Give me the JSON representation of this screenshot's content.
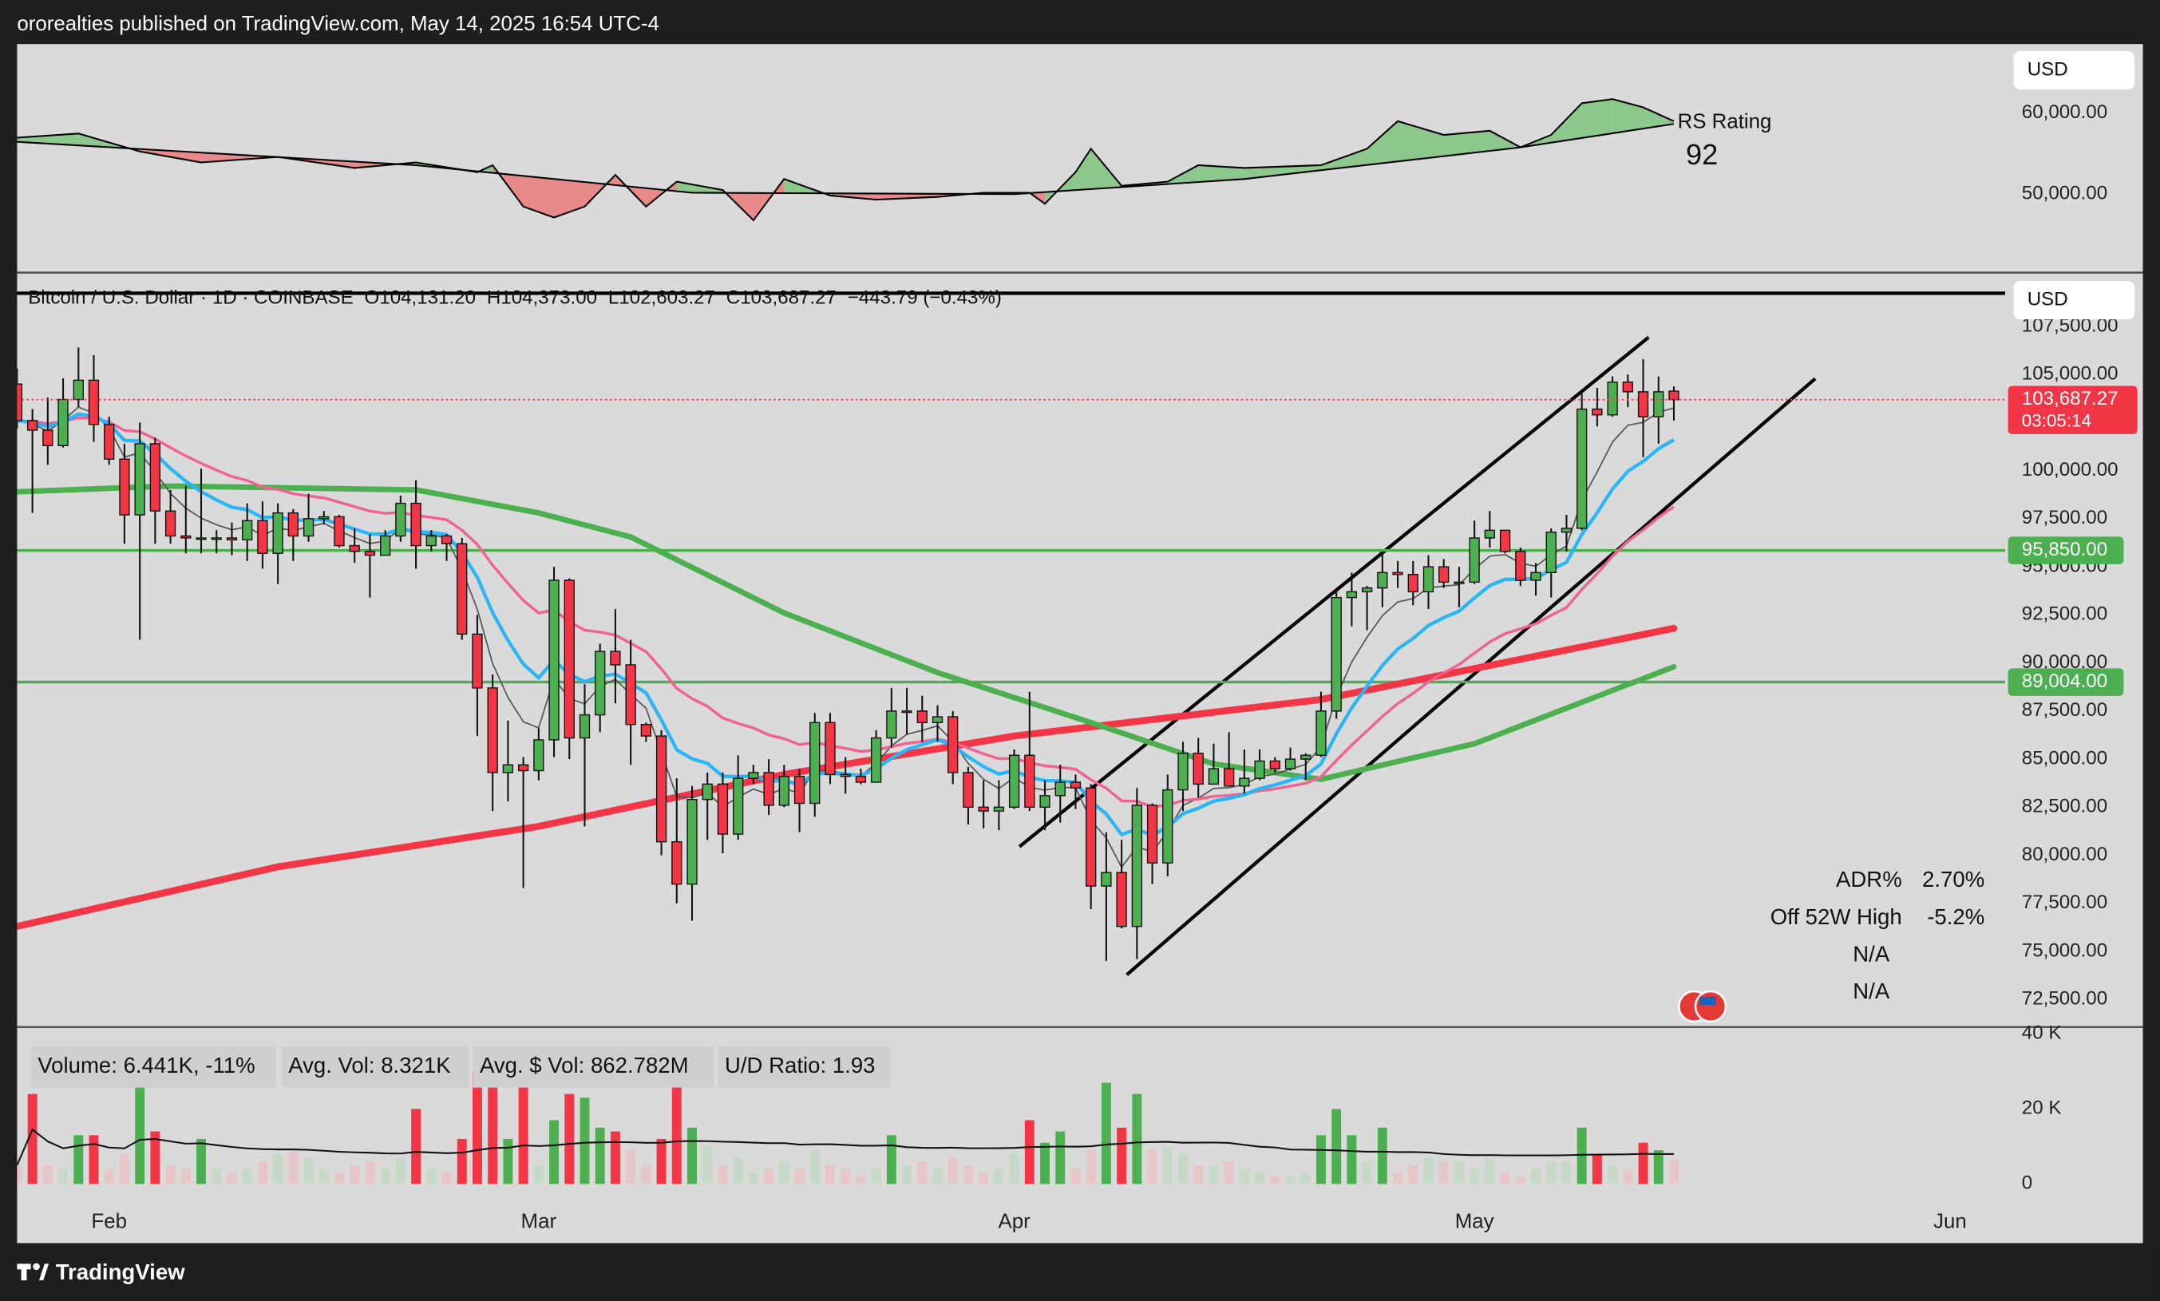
{
  "header": {
    "published": "ororealties published on TradingView.com, May 14, 2025 16:54 UTC-4"
  },
  "footer": "TradingView",
  "chart_data": [
    {
      "type": "rs",
      "title": "RS Rating",
      "rating": 92,
      "currency": "USD",
      "xlim": [
        0,
        129.6
      ],
      "ylim": [
        40510,
        68475
      ],
      "yticks": [
        {
          "value": 50000,
          "label": "50,000.00"
        },
        {
          "value": 60000,
          "label": "60,000.00"
        }
      ],
      "up_color": "#8cc88c",
      "down_color": "#e88a8a",
      "series": [
        {
          "color": "#000000",
          "x": [
            0,
            4,
            8,
            12,
            17,
            22,
            26,
            30,
            31,
            33,
            35,
            37,
            39,
            41,
            43,
            46,
            48,
            50,
            53,
            56,
            60,
            63,
            66,
            67,
            69,
            70,
            72,
            75,
            77,
            80,
            85,
            88,
            90,
            93,
            96,
            98,
            100,
            102,
            104,
            106,
            108
          ],
          "values": [
            56950,
            57460,
            55250,
            53900,
            54580,
            53220,
            53900,
            52710,
            53560,
            48470,
            47120,
            48470,
            52370,
            48470,
            51530,
            50510,
            46780,
            51860,
            49830,
            49320,
            49660,
            50170,
            50170,
            48810,
            52710,
            55590,
            51020,
            51530,
            53560,
            53220,
            53560,
            55590,
            58980,
            57290,
            57800,
            55760,
            57290,
            61190,
            61700,
            60680,
            58980
          ]
        },
        {
          "color": "#000000",
          "x": [
            0,
            26,
            44,
            65,
            80,
            98,
            108
          ],
          "values": [
            56440,
            53560,
            50170,
            50000,
            51860,
            55760,
            58640
          ]
        }
      ]
    },
    {
      "type": "candlestick",
      "currency": "USD",
      "xlim": [
        0,
        129.6
      ],
      "ylim": [
        71140,
        109080
      ],
      "legend": [
        "Bitcoin / U.S. Dollar · 1D · COINBASE",
        "O104,131.20",
        "H104,373.00",
        "L102,603.27",
        "C103,687.27",
        "−443.79 (−0.43%)"
      ],
      "up_color": "#4caf50",
      "down_color": "#f23645",
      "xticks": [
        {
          "value": 6,
          "label": "Feb"
        },
        {
          "value": 34,
          "label": "Mar"
        },
        {
          "value": 65,
          "label": "Apr"
        },
        {
          "value": 95,
          "label": "May"
        },
        {
          "value": 126,
          "label": "Jun"
        }
      ],
      "yticks": [
        {
          "value": 72500,
          "label": "72,500.00"
        },
        {
          "value": 75000,
          "label": "75,000.00"
        },
        {
          "value": 77500,
          "label": "77,500.00"
        },
        {
          "value": 80000,
          "label": "80,000.00"
        },
        {
          "value": 82500,
          "label": "82,500.00"
        },
        {
          "value": 85000,
          "label": "85,000.00"
        },
        {
          "value": 87500,
          "label": "87,500.00"
        },
        {
          "value": 90000,
          "label": "90,000.00"
        },
        {
          "value": 92500,
          "label": "92,500.00"
        },
        {
          "value": 95000,
          "label": "95,000.00"
        },
        {
          "value": 97500,
          "label": "97,500.00"
        },
        {
          "value": 100000,
          "label": "100,000.00"
        },
        {
          "value": 105000,
          "label": "105,000.00"
        },
        {
          "value": 107500,
          "label": "107,500.00"
        }
      ],
      "levels": [
        {
          "value": 95850,
          "label": "95,850.00",
          "color": "#4caf50"
        },
        {
          "value": 89004,
          "label": "89,004.00",
          "color": "#4caf50"
        }
      ],
      "last_price": {
        "value": 103687.27,
        "label": "103,687.27",
        "countdown": "03:05:14",
        "color": "#f23645"
      },
      "overlays": [
        {
          "color": "#f23645",
          "width": 5,
          "x": [
            0,
            17,
            34,
            50,
            65,
            85,
            108
          ],
          "values": [
            76300,
            79400,
            81500,
            84200,
            86200,
            88100,
            91800
          ]
        },
        {
          "color": "#4caf50",
          "width": 4,
          "x": [
            0,
            10,
            26,
            34,
            40,
            50,
            60,
            70,
            78,
            85,
            95,
            108
          ],
          "values": [
            98900,
            99200,
            99000,
            97800,
            96550,
            92600,
            89500,
            86900,
            84750,
            83950,
            85800,
            89800
          ]
        }
      ],
      "stats": [
        {
          "label": "ADR%",
          "value": "2.70%"
        },
        {
          "label": "Off 52W High",
          "value": "-5.2%"
        },
        {
          "label": "N/A"
        },
        {
          "label": "N/A"
        }
      ],
      "ohlc": [
        [
          104500,
          105300,
          102200,
          102600
        ],
        [
          102600,
          103200,
          97800,
          102100
        ],
        [
          102100,
          103800,
          100300,
          101300
        ],
        [
          101300,
          104800,
          101200,
          103700
        ],
        [
          103700,
          106400,
          103300,
          104700
        ],
        [
          104700,
          106000,
          101500,
          102400
        ],
        [
          102400,
          102800,
          100300,
          100600
        ],
        [
          100600,
          101400,
          96200,
          97700
        ],
        [
          97700,
          102500,
          91200,
          101400
        ],
        [
          101400,
          101700,
          96200,
          97900
        ],
        [
          97900,
          99000,
          96200,
          96600
        ],
        [
          96600,
          99200,
          95700,
          96500
        ],
        [
          96500,
          100100,
          95700,
          96500
        ],
        [
          96500,
          96900,
          95700,
          96500
        ],
        [
          96500,
          97300,
          95600,
          96400
        ],
        [
          96400,
          98300,
          95300,
          97400
        ],
        [
          97400,
          98400,
          94900,
          95700
        ],
        [
          95700,
          98300,
          94100,
          97800
        ],
        [
          97800,
          98000,
          95300,
          96600
        ],
        [
          96600,
          98800,
          96300,
          97500
        ],
        [
          97500,
          97900,
          97200,
          97600
        ],
        [
          97600,
          97700,
          96000,
          96100
        ],
        [
          96100,
          97000,
          95200,
          95800
        ],
        [
          95800,
          96700,
          93400,
          95600
        ],
        [
          95600,
          96900,
          95600,
          96600
        ],
        [
          96600,
          98700,
          96300,
          98300
        ],
        [
          98300,
          99500,
          94900,
          96100
        ],
        [
          96100,
          96900,
          95800,
          96600
        ],
        [
          96600,
          96700,
          95300,
          96200
        ],
        [
          96200,
          96500,
          91200,
          91500
        ],
        [
          91500,
          92500,
          86200,
          88700
        ],
        [
          88700,
          89400,
          82300,
          84300
        ],
        [
          84300,
          87000,
          82800,
          84700
        ],
        [
          84700,
          85100,
          78300,
          84400
        ],
        [
          84400,
          86600,
          83900,
          86000
        ],
        [
          86000,
          95000,
          85100,
          94300
        ],
        [
          94300,
          94400,
          85000,
          86100
        ],
        [
          86100,
          88900,
          81500,
          87300
        ],
        [
          87300,
          91000,
          86400,
          90600
        ],
        [
          90600,
          92800,
          87900,
          89900
        ],
        [
          89900,
          91200,
          84700,
          86800
        ],
        [
          86800,
          86900,
          85900,
          86200
        ],
        [
          86200,
          86500,
          80000,
          80700
        ],
        [
          80700,
          84000,
          77500,
          78500
        ],
        [
          78500,
          83600,
          76600,
          82900
        ],
        [
          82900,
          84300,
          80800,
          83700
        ],
        [
          83700,
          84300,
          80100,
          81100
        ],
        [
          81100,
          85200,
          80800,
          84000
        ],
        [
          84000,
          84700,
          83700,
          84300
        ],
        [
          84300,
          85000,
          82100,
          82600
        ],
        [
          82600,
          84700,
          82500,
          84100
        ],
        [
          84100,
          84500,
          81200,
          82700
        ],
        [
          82700,
          87400,
          82000,
          86900
        ],
        [
          86900,
          87400,
          83700,
          84200
        ],
        [
          84200,
          85100,
          83200,
          84100
        ],
        [
          84100,
          84500,
          83700,
          83800
        ],
        [
          83800,
          86500,
          83800,
          86100
        ],
        [
          86100,
          88700,
          85600,
          87500
        ],
        [
          87500,
          88700,
          86300,
          87500
        ],
        [
          87500,
          88300,
          85900,
          86900
        ],
        [
          86900,
          87800,
          85900,
          87200
        ],
        [
          87200,
          87500,
          83700,
          84300
        ],
        [
          84300,
          84600,
          81600,
          82500
        ],
        [
          82500,
          83900,
          81400,
          82300
        ],
        [
          82300,
          83900,
          81300,
          82500
        ],
        [
          82500,
          85500,
          82400,
          85200
        ],
        [
          85200,
          88500,
          82300,
          82500
        ],
        [
          82500,
          83900,
          81300,
          83100
        ],
        [
          83100,
          84700,
          81700,
          83800
        ],
        [
          83800,
          84200,
          82400,
          83500
        ],
        [
          83500,
          83700,
          77200,
          78400
        ],
        [
          78400,
          81200,
          74500,
          79100
        ],
        [
          79100,
          80800,
          76200,
          76300
        ],
        [
          76300,
          83500,
          74600,
          82600
        ],
        [
          82600,
          82700,
          78500,
          79600
        ],
        [
          79600,
          84200,
          78900,
          83400
        ],
        [
          83400,
          85900,
          82300,
          85300
        ],
        [
          85300,
          86100,
          83000,
          83700
        ],
        [
          83700,
          85800,
          83700,
          84500
        ],
        [
          84500,
          86400,
          83600,
          83600
        ],
        [
          83600,
          85500,
          83200,
          84000
        ],
        [
          84000,
          85500,
          83900,
          84900
        ],
        [
          84900,
          85100,
          84300,
          84500
        ],
        [
          84500,
          85600,
          84400,
          85000
        ],
        [
          85000,
          85300,
          83900,
          85200
        ],
        [
          85200,
          88500,
          85100,
          87500
        ],
        [
          87500,
          93800,
          87100,
          93400
        ],
        [
          93400,
          94700,
          91900,
          93700
        ],
        [
          93700,
          94000,
          91700,
          93900
        ],
        [
          93900,
          95800,
          92900,
          94700
        ],
        [
          94700,
          95300,
          93900,
          94600
        ],
        [
          94600,
          95300,
          93000,
          93700
        ],
        [
          93700,
          95600,
          92800,
          95000
        ],
        [
          95000,
          95400,
          93900,
          94200
        ],
        [
          94200,
          95000,
          92900,
          94200
        ],
        [
          94200,
          97400,
          94100,
          96500
        ],
        [
          96500,
          97900,
          96000,
          96900
        ],
        [
          96900,
          96900,
          95700,
          95800
        ],
        [
          95800,
          96000,
          94000,
          94300
        ],
        [
          94300,
          95200,
          93500,
          94700
        ],
        [
          94700,
          97000,
          93400,
          96800
        ],
        [
          96800,
          97700,
          95800,
          97000
        ],
        [
          97000,
          104000,
          96900,
          103200
        ],
        [
          103200,
          104300,
          102300,
          102900
        ],
        [
          102900,
          104900,
          102800,
          104600
        ],
        [
          104600,
          105000,
          103300,
          104100
        ],
        [
          104100,
          105800,
          100700,
          102800
        ],
        [
          102800,
          104900,
          101400,
          104100
        ],
        [
          104131.2,
          104373,
          102603.27,
          103687.27
        ]
      ]
    },
    {
      "type": "volume",
      "xlim": [
        0,
        129.6
      ],
      "ylim": [
        0,
        40000
      ],
      "yticks": [
        0,
        {
          "value": 20000,
          "label": "20 K"
        },
        {
          "value": 40000,
          "label": "40 K"
        }
      ],
      "stats": [
        "Volume: 6.441K, -11%",
        "Avg. Vol: 8.321K",
        "Avg. $ Vol: 862.782M",
        "U/D Ratio: 1.93"
      ],
      "values": [
        5000,
        24000,
        5000,
        4000,
        13000,
        13000,
        4000,
        8000,
        30000,
        14000,
        5000,
        4000,
        12000,
        4000,
        3000,
        4000,
        6000,
        8000,
        9000,
        7000,
        4000,
        3000,
        5000,
        6000,
        4000,
        7000,
        20000,
        4000,
        3000,
        12000,
        30000,
        27000,
        12000,
        30000,
        5000,
        17000,
        24000,
        23000,
        15000,
        14000,
        9000,
        5000,
        12000,
        27000,
        15000,
        10000,
        5000,
        7000,
        3000,
        4000,
        6000,
        4000,
        9000,
        5000,
        4000,
        2000,
        4000,
        13000,
        5000,
        6000,
        4000,
        7000,
        5000,
        3000,
        4000,
        8000,
        17000,
        11000,
        14000,
        4000,
        9000,
        27000,
        15000,
        24000,
        9000,
        10000,
        8000,
        5000,
        5000,
        6000,
        4000,
        3000,
        2000,
        2000,
        3000,
        13000,
        20000,
        13000,
        6000,
        15000,
        3000,
        5000,
        7000,
        6000,
        6000,
        4000,
        7000,
        3000,
        2000,
        4000,
        6000,
        6000,
        15000,
        8000,
        5000,
        4000,
        11000,
        9000,
        6441
      ]
    }
  ]
}
